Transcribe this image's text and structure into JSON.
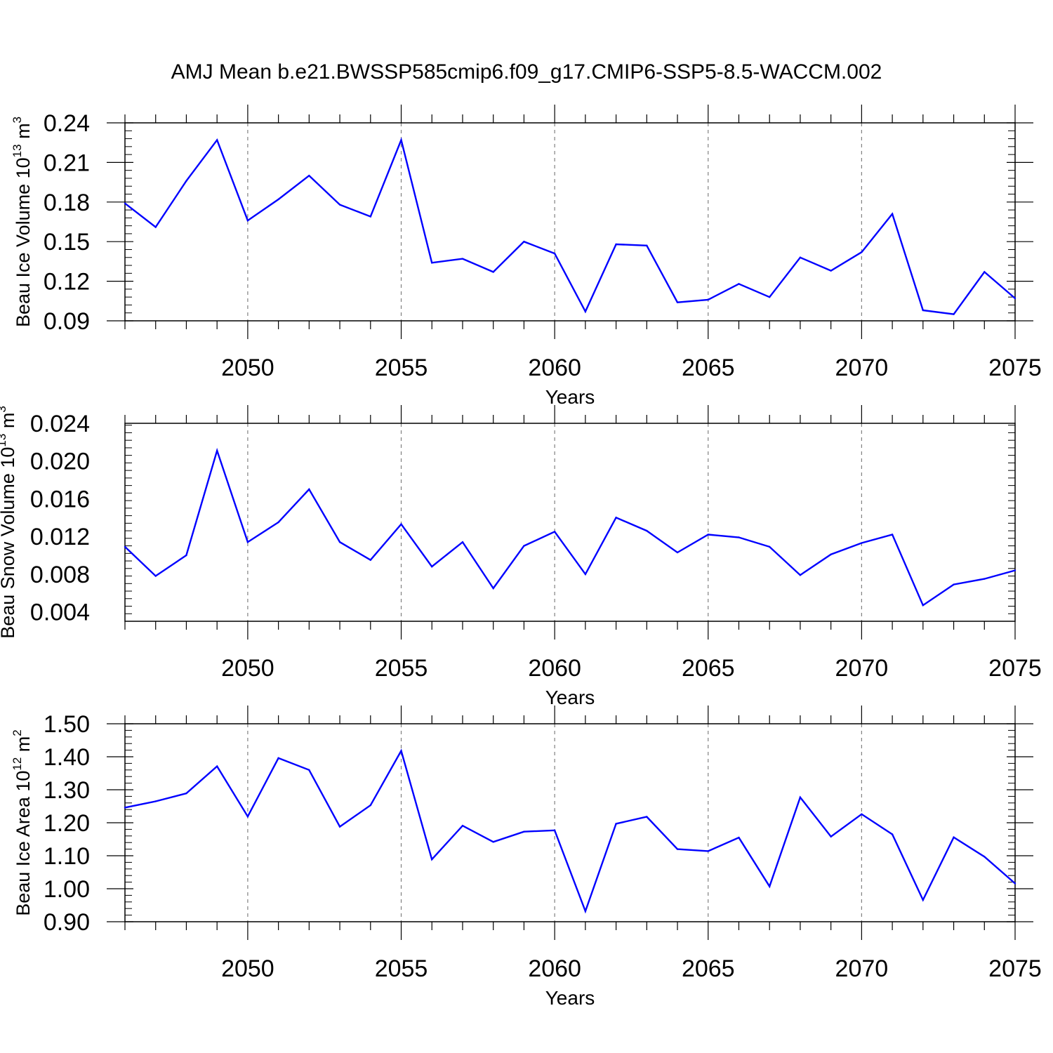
{
  "figure": {
    "title": "AMJ Mean b.e21.BWSSP585cmip6.f09_g17.CMIP6-SSP5-8.5-WACCM.002"
  },
  "colors": {
    "line": "#0000ff",
    "axis": "#000000",
    "grid": "#808080"
  },
  "chart_data": [
    {
      "type": "line",
      "xlabel": "Years",
      "ylabel": {
        "text": "Beau Ice Volume 10",
        "sup": "13",
        "unit": " m",
        "unit_sup": "3"
      },
      "xlim": [
        2046,
        2075
      ],
      "ylim": [
        0.09,
        0.24
      ],
      "x_ticks": [
        2050,
        2055,
        2060,
        2065,
        2070,
        2075
      ],
      "y_ticks": [
        0.09,
        0.12,
        0.15,
        0.18,
        0.21,
        0.24
      ],
      "y_tick_labels": [
        "0.09",
        "0.12",
        "0.15",
        "0.18",
        "0.21",
        "0.24"
      ],
      "grid": "vertical dashed at major x ticks",
      "x": [
        2046,
        2047,
        2048,
        2049,
        2050,
        2051,
        2052,
        2053,
        2054,
        2055,
        2056,
        2057,
        2058,
        2059,
        2060,
        2061,
        2062,
        2063,
        2064,
        2065,
        2066,
        2067,
        2068,
        2069,
        2070,
        2071,
        2072,
        2073,
        2074,
        2075
      ],
      "values": [
        0.179,
        0.161,
        0.196,
        0.227,
        0.166,
        0.182,
        0.2,
        0.178,
        0.169,
        0.227,
        0.134,
        0.137,
        0.127,
        0.15,
        0.141,
        0.097,
        0.148,
        0.147,
        0.104,
        0.106,
        0.118,
        0.108,
        0.138,
        0.128,
        0.142,
        0.171,
        0.098,
        0.095,
        0.127,
        0.107
      ]
    },
    {
      "type": "line",
      "xlabel": "Years",
      "ylabel": {
        "text": "Beau Snow Volume 10",
        "sup": "13",
        "unit": " m",
        "unit_sup": "3"
      },
      "xlim": [
        2046,
        2075
      ],
      "ylim": [
        0.003,
        0.024
      ],
      "x_ticks": [
        2050,
        2055,
        2060,
        2065,
        2070,
        2075
      ],
      "y_ticks": [
        0.004,
        0.008,
        0.012,
        0.016,
        0.02,
        0.024
      ],
      "y_tick_labels": [
        "0.004",
        "0.008",
        "0.012",
        "0.016",
        "0.020",
        "0.024"
      ],
      "grid": "vertical dashed at major x ticks",
      "x": [
        2046,
        2047,
        2048,
        2049,
        2050,
        2051,
        2052,
        2053,
        2054,
        2055,
        2056,
        2057,
        2058,
        2059,
        2060,
        2061,
        2062,
        2063,
        2064,
        2065,
        2066,
        2067,
        2068,
        2069,
        2070,
        2071,
        2072,
        2073,
        2074,
        2075
      ],
      "values": [
        0.0109,
        0.0078,
        0.01,
        0.0211,
        0.0114,
        0.0135,
        0.017,
        0.0114,
        0.0095,
        0.0133,
        0.0088,
        0.0114,
        0.0065,
        0.011,
        0.0125,
        0.008,
        0.014,
        0.0126,
        0.0103,
        0.0122,
        0.0119,
        0.0109,
        0.0079,
        0.0101,
        0.0113,
        0.0122,
        0.0047,
        0.0069,
        0.0075,
        0.0084
      ]
    },
    {
      "type": "line",
      "xlabel": "Years",
      "ylabel": {
        "text": "Beau Ice Area 10",
        "sup": "12",
        "unit": " m",
        "unit_sup": "2"
      },
      "xlim": [
        2046,
        2075
      ],
      "ylim": [
        0.9,
        1.5
      ],
      "x_ticks": [
        2050,
        2055,
        2060,
        2065,
        2070,
        2075
      ],
      "y_ticks": [
        0.9,
        1.0,
        1.1,
        1.2,
        1.3,
        1.4,
        1.5
      ],
      "y_tick_labels": [
        "0.90",
        "1.00",
        "1.10",
        "1.20",
        "1.30",
        "1.40",
        "1.50"
      ],
      "grid": "vertical dashed at major x ticks",
      "x": [
        2046,
        2047,
        2048,
        2049,
        2050,
        2051,
        2052,
        2053,
        2054,
        2055,
        2056,
        2057,
        2058,
        2059,
        2060,
        2061,
        2062,
        2063,
        2064,
        2065,
        2066,
        2067,
        2068,
        2069,
        2070,
        2071,
        2072,
        2073,
        2074,
        2075
      ],
      "values": [
        1.246,
        1.265,
        1.289,
        1.371,
        1.219,
        1.396,
        1.36,
        1.188,
        1.253,
        1.418,
        1.089,
        1.191,
        1.142,
        1.173,
        1.177,
        0.932,
        1.197,
        1.218,
        1.12,
        1.114,
        1.155,
        1.007,
        1.277,
        1.158,
        1.226,
        1.165,
        0.966,
        1.156,
        1.097,
        1.016
      ]
    }
  ]
}
